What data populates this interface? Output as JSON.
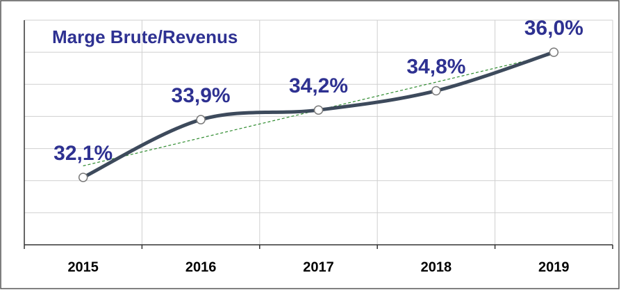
{
  "chart_data": {
    "type": "line",
    "title": "Marge Brute/Revenus",
    "categories": [
      "2015",
      "2016",
      "2017",
      "2018",
      "2019"
    ],
    "values": [
      32.1,
      33.9,
      34.2,
      34.8,
      36.0
    ],
    "value_labels": [
      "32,1%",
      "33,9%",
      "34,2%",
      "34,8%",
      "36,0%"
    ],
    "color": "#3d4a5c",
    "ylim": [
      30,
      37
    ],
    "yticks": [
      30,
      31,
      32,
      33,
      34,
      35,
      36,
      37
    ],
    "grid": true,
    "smooth": true,
    "trendline": true,
    "trendline_color": "#2e8b2e"
  }
}
